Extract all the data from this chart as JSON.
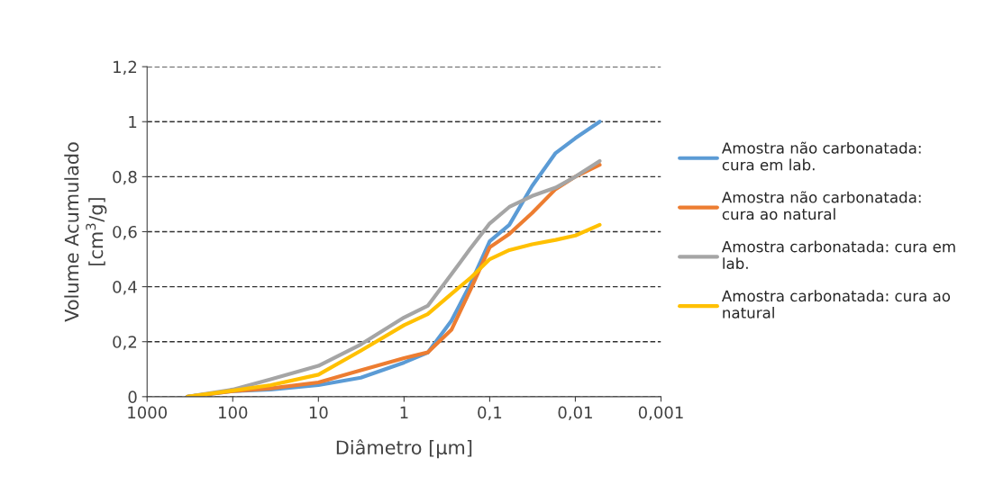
{
  "chart_data": {
    "type": "line",
    "xlabel": "Diâmetro [µm]",
    "ylabel": "Volume Acumulado\n[cm$^{3}$/g]",
    "x": [
      336,
      100,
      36,
      10,
      3.2,
      1,
      0.53,
      0.28,
      0.17,
      0.1,
      0.059,
      0.032,
      0.017,
      0.01,
      0.0052
    ],
    "series": [
      {
        "name": "Amostra não carbonatada:\ncura em lab.",
        "color": "#5b9bd5",
        "values": [
          0,
          0.02,
          0.026,
          0.042,
          0.069,
          0.124,
          0.16,
          0.276,
          0.406,
          0.565,
          0.625,
          0.766,
          0.886,
          0.94,
          1.0
        ]
      },
      {
        "name": "Amostra não carbonatada:\ncura ao natural",
        "color": "#ed7d31",
        "values": [
          0,
          0.02,
          0.03,
          0.052,
          0.096,
          0.14,
          0.161,
          0.243,
          0.385,
          0.543,
          0.592,
          0.668,
          0.755,
          0.8,
          0.843
        ]
      },
      {
        "name": "Amostra carbonatada: cura em\nlab.",
        "color": "#a5a5a5",
        "values": [
          0,
          0.026,
          0.063,
          0.112,
          0.19,
          0.288,
          0.33,
          0.445,
          0.537,
          0.63,
          0.69,
          0.73,
          0.76,
          0.8,
          0.857
        ]
      },
      {
        "name": "Amostra carbonatada: cura ao\nnatural",
        "color": "#ffc000",
        "values": [
          0,
          0.022,
          0.042,
          0.08,
          0.167,
          0.26,
          0.3,
          0.374,
          0.43,
          0.5,
          0.533,
          0.554,
          0.57,
          0.586,
          0.625
        ]
      }
    ],
    "log": "x",
    "xlim": [
      1000,
      0.001
    ],
    "xticks": [
      1000,
      100,
      10,
      1,
      {
        "value": 0.1,
        "label": "0,1"
      },
      {
        "value": 0.01,
        "label": "0,01"
      },
      {
        "value": 0.001,
        "label": "0,001"
      }
    ],
    "ylim": [
      0,
      1.2
    ],
    "yticks": [
      0,
      {
        "value": 0.2,
        "label": "0,2"
      },
      {
        "value": 0.4,
        "label": "0,4"
      },
      {
        "value": 0.6,
        "label": "0,6"
      },
      {
        "value": 0.8,
        "label": "0,8"
      },
      1,
      {
        "value": 1.2,
        "label": "1,2"
      }
    ],
    "grid": "y",
    "legend": "right",
    "marker": "none",
    "line_style": "solid"
  }
}
